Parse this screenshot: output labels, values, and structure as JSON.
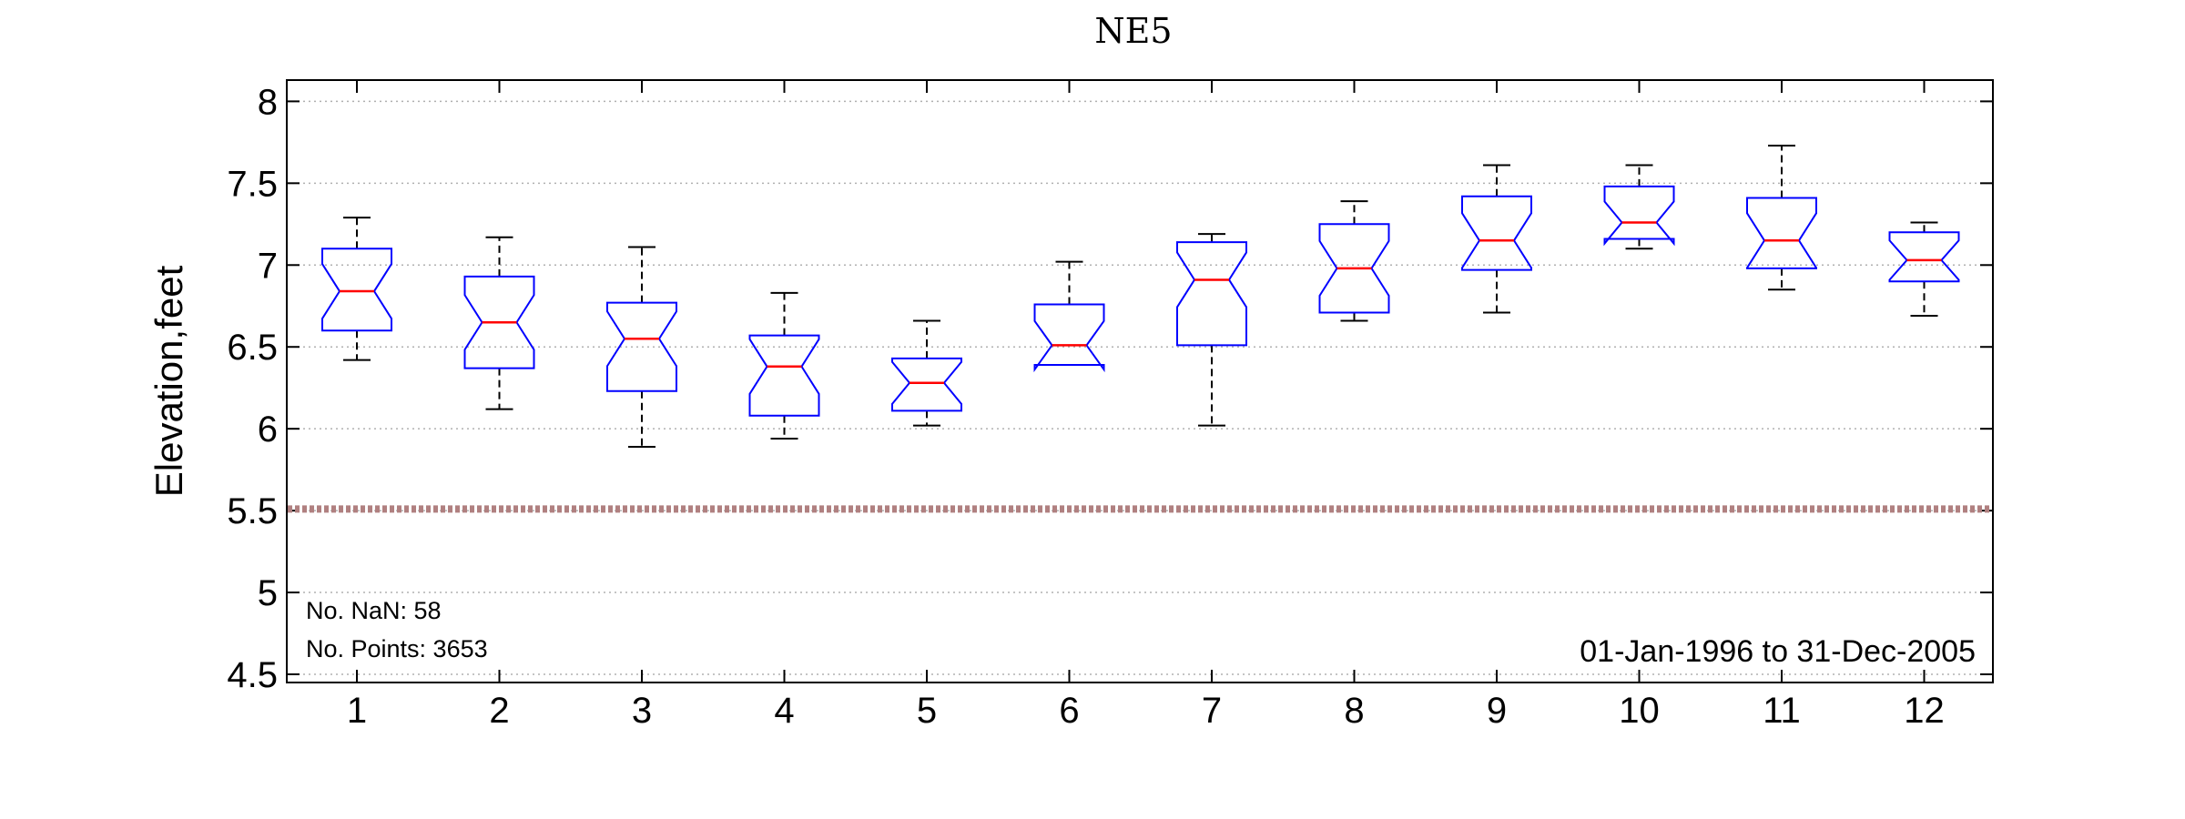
{
  "chart_data": {
    "type": "box",
    "title": "NE5",
    "xlabel": "",
    "ylabel": "Elevation,feet",
    "categories": [
      "1",
      "2",
      "3",
      "4",
      "5",
      "6",
      "7",
      "8",
      "9",
      "10",
      "11",
      "12"
    ],
    "ylim": [
      4.45,
      8.13
    ],
    "yticks": [
      4.5,
      5,
      5.5,
      6,
      6.5,
      7,
      7.5,
      8
    ],
    "ytick_labels": [
      "4.5",
      "5",
      "5.5",
      "6",
      "6.5",
      "7",
      "7.5",
      "8"
    ],
    "grid": "horizontal-dotted",
    "reference_line": {
      "y": 5.51,
      "color": "#b08080"
    },
    "boxes": [
      {
        "month": "1",
        "min": 6.42,
        "q1": 6.6,
        "median": 6.84,
        "q3": 7.1,
        "max": 7.29
      },
      {
        "month": "2",
        "min": 6.12,
        "q1": 6.37,
        "median": 6.65,
        "q3": 6.93,
        "max": 7.17
      },
      {
        "month": "3",
        "min": 5.89,
        "q1": 6.23,
        "median": 6.55,
        "q3": 6.77,
        "max": 7.11
      },
      {
        "month": "4",
        "min": 5.94,
        "q1": 6.08,
        "median": 6.38,
        "q3": 6.57,
        "max": 6.83
      },
      {
        "month": "5",
        "min": 6.02,
        "q1": 6.11,
        "median": 6.28,
        "q3": 6.43,
        "max": 6.66
      },
      {
        "month": "6",
        "min": 6.39,
        "q1": 6.39,
        "median": 6.51,
        "q3": 6.76,
        "max": 7.02
      },
      {
        "month": "7",
        "min": 6.02,
        "q1": 6.51,
        "median": 6.91,
        "q3": 7.14,
        "max": 7.19
      },
      {
        "month": "8",
        "min": 6.66,
        "q1": 6.71,
        "median": 6.98,
        "q3": 7.25,
        "max": 7.39
      },
      {
        "month": "9",
        "min": 6.71,
        "q1": 6.97,
        "median": 7.15,
        "q3": 7.42,
        "max": 7.61
      },
      {
        "month": "10",
        "min": 7.1,
        "q1": 7.16,
        "median": 7.26,
        "q3": 7.48,
        "max": 7.61
      },
      {
        "month": "11",
        "min": 6.85,
        "q1": 6.98,
        "median": 7.15,
        "q3": 7.41,
        "max": 7.73
      },
      {
        "month": "12",
        "min": 6.69,
        "q1": 6.9,
        "median": 7.03,
        "q3": 7.2,
        "max": 7.26
      }
    ],
    "box_color": "#0000ff",
    "median_color": "#ff0000",
    "whisker_color": "#000000"
  },
  "annotations": {
    "nan_count": "No. NaN: 58",
    "points_count": "No. Points: 3653",
    "date_range": "01-Jan-1996 to 31-Dec-2005"
  }
}
